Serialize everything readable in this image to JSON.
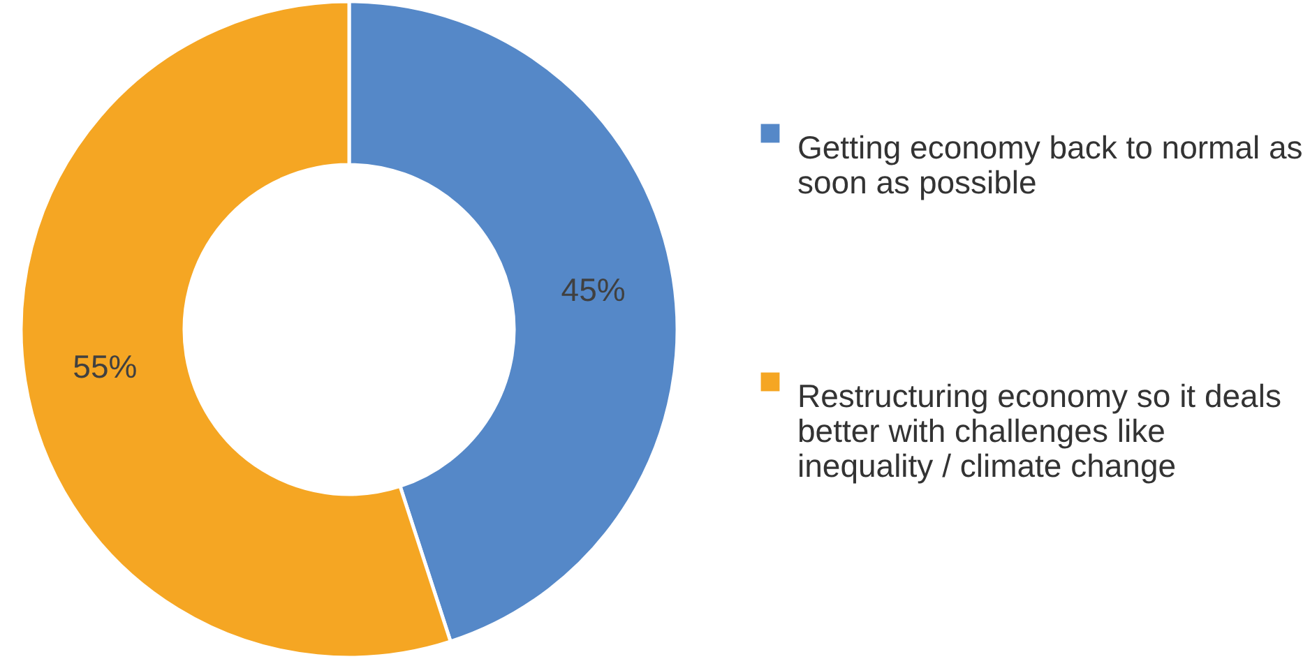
{
  "chart_data": {
    "type": "donut",
    "categories": [
      "Getting economy back to normal as soon as possible",
      "Restructuring economy so it deals better with challenges like inequality / climate change"
    ],
    "values": [
      45,
      55
    ],
    "colors": [
      "#5588c8",
      "#f5a623"
    ],
    "value_labels": [
      "45%",
      "55%"
    ],
    "legend": "right"
  }
}
